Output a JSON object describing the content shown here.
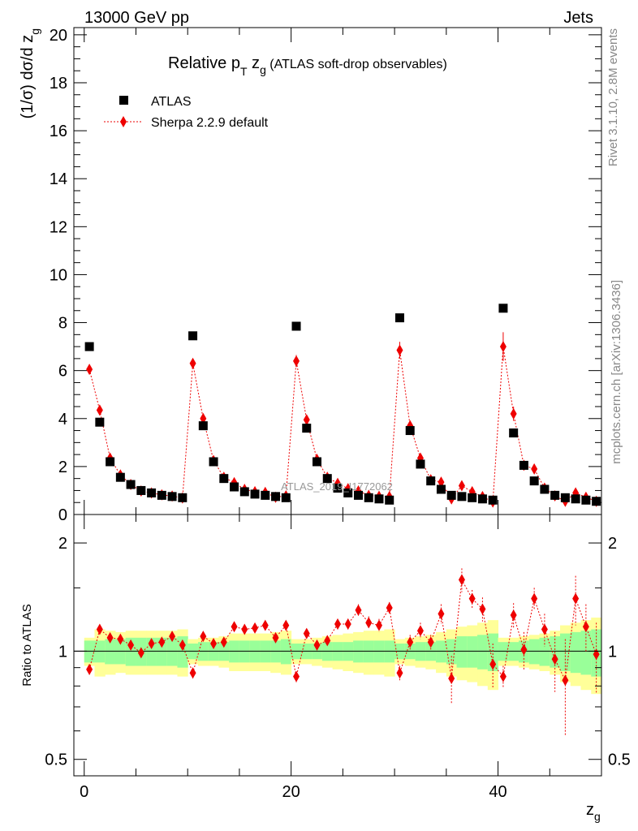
{
  "header": {
    "energy": "13000 GeV pp",
    "process": "Jets"
  },
  "side": {
    "rivet": "Rivet 3.1.10,  2.8M events",
    "mcplots": "mcplots.cern.ch [arXiv:1306.3436]"
  },
  "chart_data": {
    "type": "scatter",
    "title_main": "Relative p",
    "title_sub1": "T",
    "title_mid": " z",
    "title_sub2": "g",
    "title_paren": " (ATLAS soft-drop observables)",
    "watermark": "ATLAS_2019_I1772062",
    "ylabel": "(1/σ) dσ/d z",
    "ylabel_sub": "g",
    "xlabel": "z",
    "xlabel_sub": "g",
    "ratio_ylabel": "Ratio to ATLAS",
    "xlim": [
      -1,
      50
    ],
    "ylim": [
      0,
      20.3
    ],
    "ratio_ylim": [
      0.45,
      2.4
    ],
    "ratio_log": true,
    "xticks": [
      0,
      20,
      40
    ],
    "xtick_labels": [
      "0",
      "20",
      "40"
    ],
    "yticks": [
      0,
      2,
      4,
      6,
      8,
      10,
      12,
      14,
      16,
      18,
      20
    ],
    "ytick_labels": [
      "0",
      "2",
      "4",
      "6",
      "8",
      "10",
      "12",
      "14",
      "16",
      "18",
      "20"
    ],
    "ratio_yticks": [
      0.5,
      1,
      2
    ],
    "ratio_ytick_labels": [
      "0.5",
      "1",
      "2"
    ],
    "legend": [
      {
        "name": "ATLAS",
        "color": "#000000"
      },
      {
        "name": "Sherpa 2.2.9 default",
        "color": "#ee0000"
      }
    ],
    "x": [
      0.5,
      1.5,
      2.5,
      3.5,
      4.5,
      5.5,
      6.5,
      7.5,
      8.5,
      9.5,
      10.5,
      11.5,
      12.5,
      13.5,
      14.5,
      15.5,
      16.5,
      17.5,
      18.5,
      19.5,
      20.5,
      21.5,
      22.5,
      23.5,
      24.5,
      25.5,
      26.5,
      27.5,
      28.5,
      29.5,
      30.5,
      31.5,
      32.5,
      33.5,
      34.5,
      35.5,
      36.5,
      37.5,
      38.5,
      39.5,
      40.5,
      41.5,
      42.5,
      43.5,
      44.5,
      45.5,
      46.5,
      47.5,
      48.5,
      49.5
    ],
    "series": [
      {
        "name": "ATLAS",
        "color": "#000000",
        "values": [
          7.0,
          3.85,
          2.2,
          1.55,
          1.25,
          1.0,
          0.9,
          0.8,
          0.75,
          0.7,
          7.45,
          3.7,
          2.2,
          1.5,
          1.15,
          0.95,
          0.85,
          0.8,
          0.75,
          0.7,
          7.85,
          3.6,
          2.2,
          1.5,
          1.1,
          0.9,
          0.8,
          0.7,
          0.65,
          0.6,
          8.2,
          3.5,
          2.1,
          1.4,
          1.05,
          0.8,
          0.75,
          0.7,
          0.65,
          0.6,
          8.6,
          3.4,
          2.05,
          1.4,
          1.05,
          0.8,
          0.7,
          0.65,
          0.6,
          0.55
        ]
      },
      {
        "name": "Sherpa 2.2.9 default",
        "color": "#ee0000",
        "values": [
          6.05,
          4.35,
          2.35,
          1.65,
          1.25,
          0.98,
          0.9,
          0.82,
          0.77,
          0.69,
          6.3,
          4.0,
          2.25,
          1.55,
          1.33,
          1.05,
          0.95,
          0.92,
          0.72,
          0.78,
          6.4,
          3.95,
          2.3,
          1.55,
          1.3,
          1.08,
          0.98,
          0.8,
          0.76,
          0.75,
          6.85,
          3.7,
          2.35,
          1.45,
          1.35,
          0.65,
          1.2,
          0.95,
          0.75,
          0.52,
          7.0,
          4.2,
          2.05,
          1.9,
          1.1,
          0.78,
          0.55,
          0.9,
          0.72,
          0.55
        ],
        "errors": [
          0.15,
          0.12,
          0.08,
          0.05,
          0.04,
          0.03,
          0.03,
          0.03,
          0.03,
          0.03,
          0.2,
          0.12,
          0.08,
          0.05,
          0.05,
          0.04,
          0.04,
          0.04,
          0.04,
          0.04,
          0.25,
          0.15,
          0.1,
          0.07,
          0.06,
          0.05,
          0.05,
          0.05,
          0.05,
          0.05,
          0.35,
          0.2,
          0.15,
          0.1,
          0.1,
          0.15,
          0.12,
          0.1,
          0.1,
          0.1,
          0.6,
          0.3,
          0.15,
          0.15,
          0.1,
          0.12,
          0.15,
          0.12,
          0.1,
          0.1
        ]
      }
    ],
    "ratio": [
      0.89,
      1.15,
      1.09,
      1.08,
      1.04,
      0.99,
      1.05,
      1.06,
      1.1,
      1.04,
      0.87,
      1.1,
      1.05,
      1.06,
      1.17,
      1.15,
      1.16,
      1.18,
      1.09,
      1.18,
      0.85,
      1.12,
      1.04,
      1.07,
      1.19,
      1.19,
      1.3,
      1.2,
      1.18,
      1.32,
      0.87,
      1.06,
      1.14,
      1.06,
      1.27,
      0.84,
      1.58,
      1.4,
      1.31,
      0.92,
      0.85,
      1.26,
      1.01,
      1.4,
      1.15,
      0.95,
      0.83,
      1.4,
      1.17,
      0.98
    ],
    "ratio_err": [
      0.03,
      0.03,
      0.03,
      0.03,
      0.03,
      0.03,
      0.03,
      0.03,
      0.03,
      0.03,
      0.03,
      0.03,
      0.03,
      0.03,
      0.03,
      0.03,
      0.03,
      0.03,
      0.03,
      0.03,
      0.03,
      0.03,
      0.03,
      0.03,
      0.04,
      0.04,
      0.05,
      0.05,
      0.05,
      0.05,
      0.04,
      0.05,
      0.06,
      0.05,
      0.08,
      0.13,
      0.12,
      0.08,
      0.1,
      0.13,
      0.06,
      0.1,
      0.12,
      0.1,
      0.12,
      0.18,
      0.25,
      0.22,
      0.18,
      0.22
    ],
    "band_inner": [
      0.07,
      0.07,
      0.08,
      0.08,
      0.09,
      0.09,
      0.09,
      0.09,
      0.09,
      0.1,
      0.05,
      0.06,
      0.06,
      0.06,
      0.07,
      0.07,
      0.07,
      0.07,
      0.07,
      0.08,
      0.05,
      0.05,
      0.05,
      0.06,
      0.06,
      0.06,
      0.07,
      0.07,
      0.07,
      0.07,
      0.05,
      0.05,
      0.06,
      0.06,
      0.07,
      0.08,
      0.1,
      0.1,
      0.11,
      0.12,
      0.06,
      0.06,
      0.07,
      0.08,
      0.09,
      0.1,
      0.12,
      0.13,
      0.14,
      0.15
    ],
    "band_outer": [
      0.09,
      0.15,
      0.14,
      0.13,
      0.14,
      0.14,
      0.14,
      0.14,
      0.14,
      0.15,
      0.08,
      0.09,
      0.09,
      0.1,
      0.12,
      0.12,
      0.12,
      0.12,
      0.13,
      0.14,
      0.08,
      0.08,
      0.09,
      0.1,
      0.11,
      0.12,
      0.13,
      0.14,
      0.14,
      0.15,
      0.08,
      0.09,
      0.1,
      0.11,
      0.13,
      0.15,
      0.17,
      0.18,
      0.2,
      0.22,
      0.09,
      0.09,
      0.1,
      0.11,
      0.12,
      0.14,
      0.18,
      0.2,
      0.22,
      0.24
    ]
  }
}
